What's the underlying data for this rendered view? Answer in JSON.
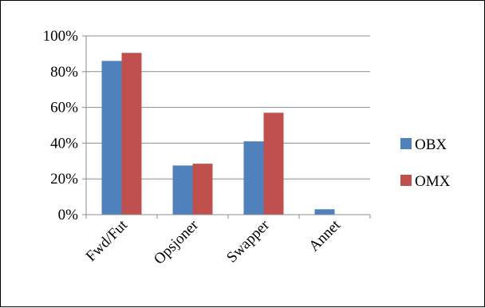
{
  "chart_data": {
    "type": "bar",
    "categories": [
      "Fwd/Fut",
      "Opsjoner",
      "Swapper",
      "Annet"
    ],
    "series": [
      {
        "name": "OBX",
        "color": "#4F81BD",
        "values": [
          86,
          27.5,
          41,
          3
        ]
      },
      {
        "name": "OMX",
        "color": "#C0504D",
        "values": [
          90.5,
          28.5,
          57,
          0
        ]
      }
    ],
    "ylim": [
      0,
      100
    ],
    "yticks": [
      0,
      20,
      40,
      60,
      80,
      100
    ],
    "ytick_labels": [
      "0%",
      "20%",
      "40%",
      "60%",
      "80%",
      "100%"
    ],
    "grid": true,
    "legend_position": "right"
  }
}
